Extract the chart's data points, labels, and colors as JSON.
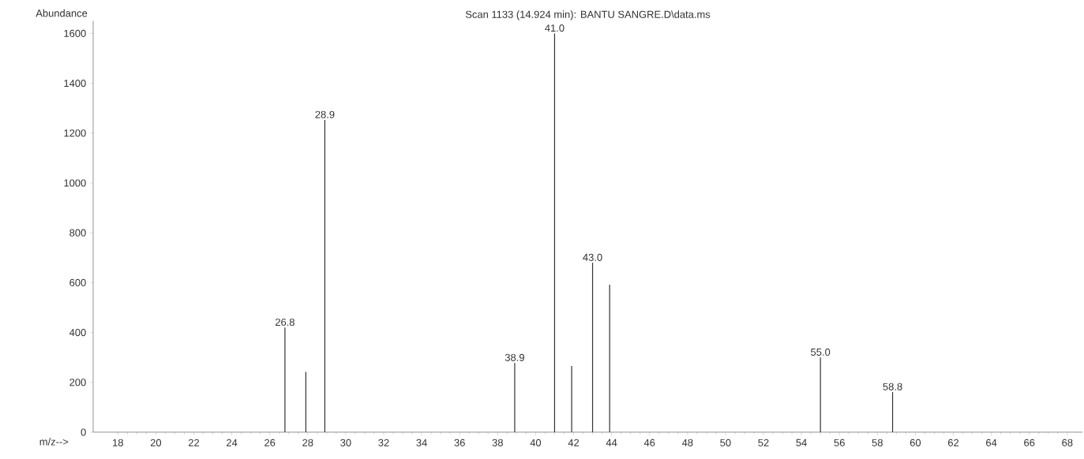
{
  "chart_data": {
    "type": "bar",
    "title": "Scan 1133 (14.924 min): BANTU SANGRE.D\\data.ms",
    "ylabel": "Abundance",
    "xlabel": "m/z-->",
    "x": [
      26.8,
      27.9,
      28.9,
      38.9,
      41.0,
      41.9,
      43.0,
      43.9,
      55.0,
      58.8
    ],
    "values": [
      420,
      242,
      1253,
      278,
      1600,
      266,
      680,
      592,
      300,
      161
    ],
    "color": "#333333",
    "xlim": [
      16.7,
      68.8
    ],
    "ylim": [
      0,
      1650
    ],
    "xticks": [
      18,
      20,
      22,
      24,
      26,
      28,
      30,
      32,
      34,
      36,
      38,
      40,
      42,
      44,
      46,
      48,
      50,
      52,
      54,
      56,
      58,
      60,
      62,
      64,
      66,
      68
    ],
    "yticks": [
      0,
      200,
      400,
      600,
      800,
      1000,
      1200,
      1400,
      1600
    ],
    "annotations": [
      {
        "text": "26.8",
        "x": 26.8,
        "y": 420
      },
      {
        "text": "28.9",
        "x": 28.9,
        "y": 1253
      },
      {
        "text": "38.9",
        "x": 38.9,
        "y": 278
      },
      {
        "text": "41.0",
        "x": 41.0,
        "y": 1600
      },
      {
        "text": "43.0",
        "x": 43.0,
        "y": 680
      },
      {
        "text": "55.0",
        "x": 55.0,
        "y": 300
      },
      {
        "text": "58.8",
        "x": 58.8,
        "y": 161
      }
    ],
    "grid": false
  }
}
